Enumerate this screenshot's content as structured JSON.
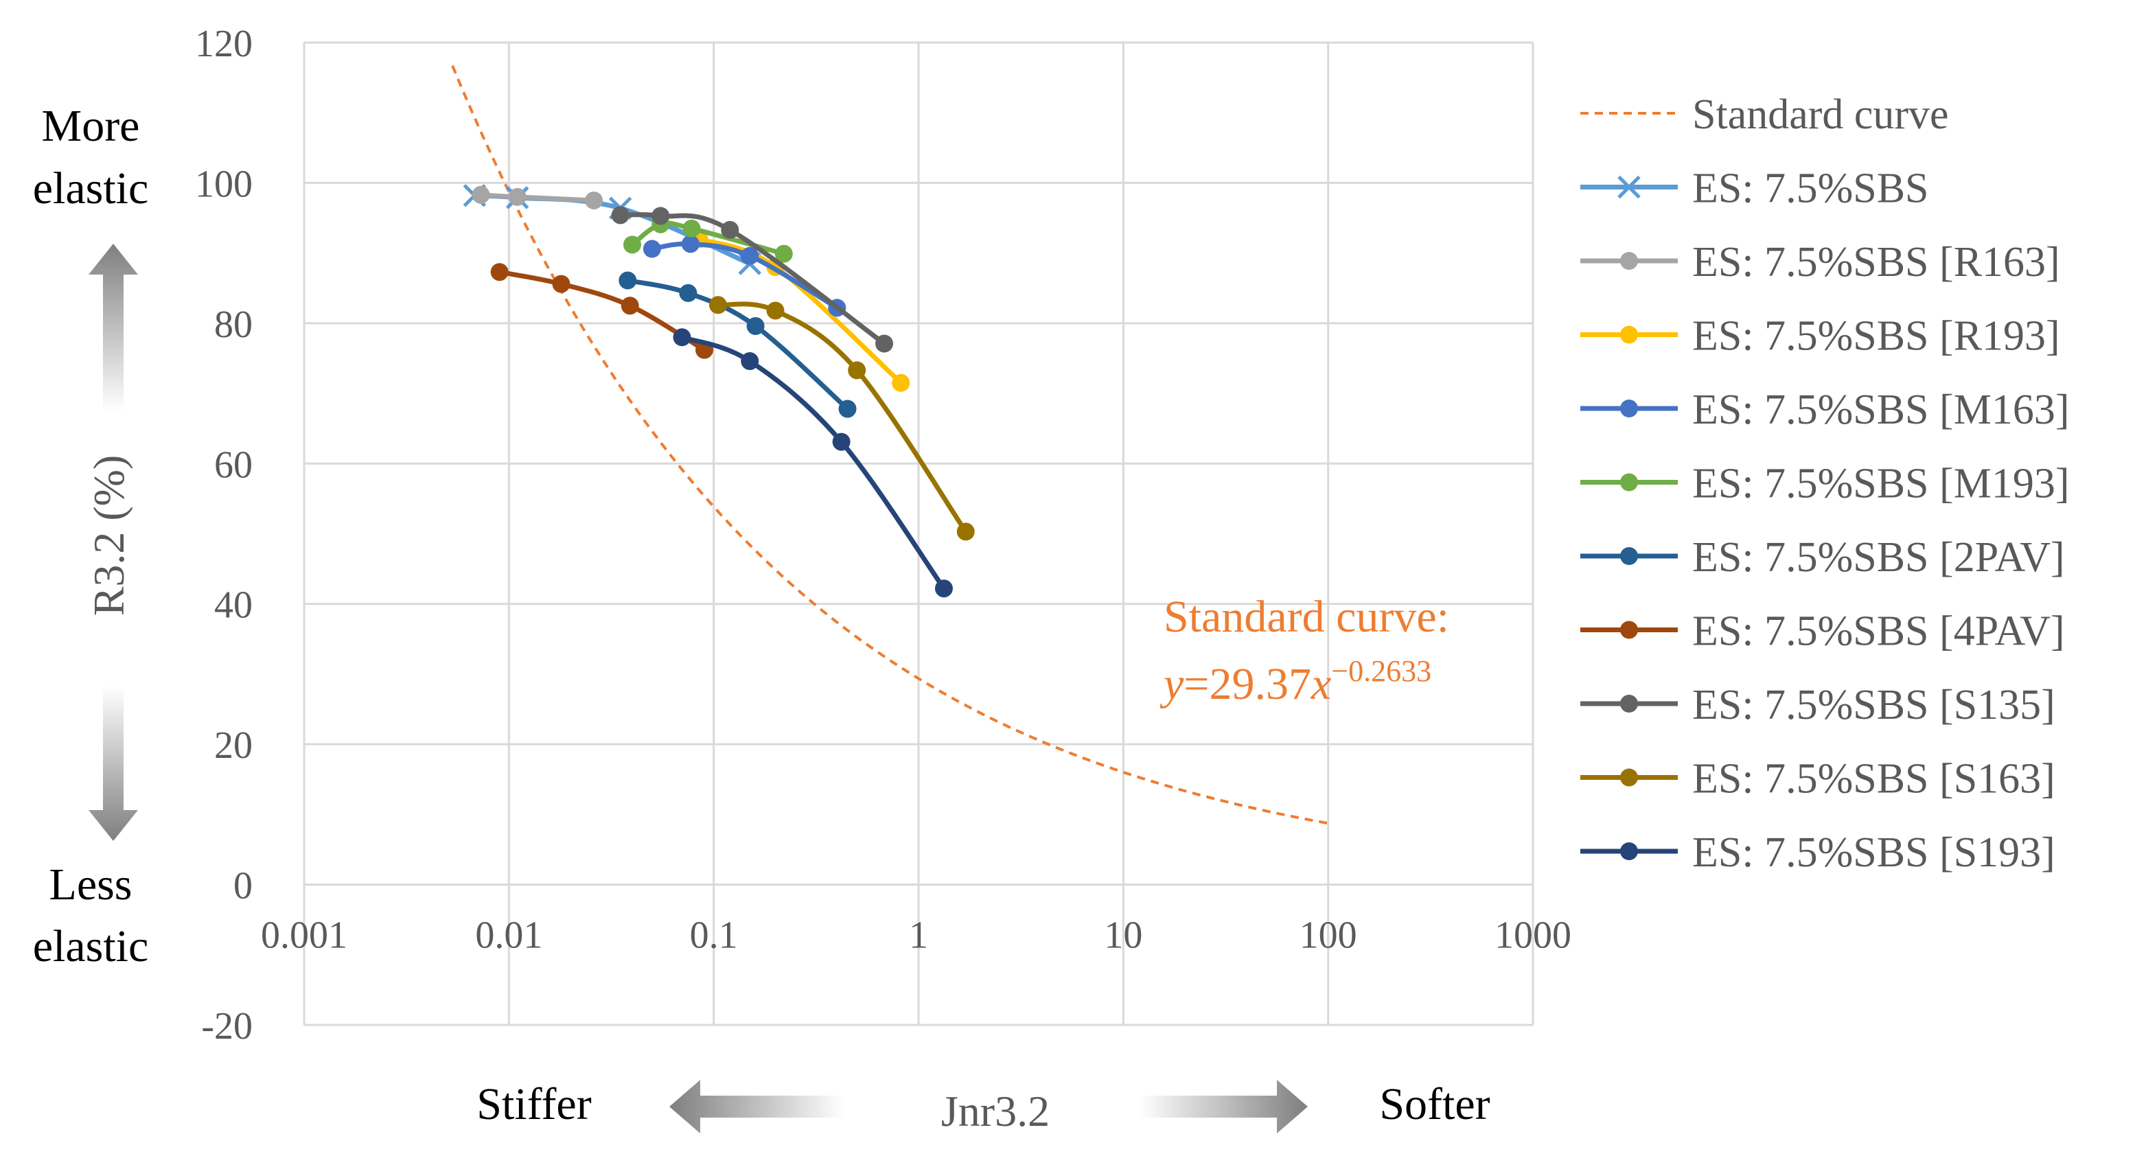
{
  "chart_data": {
    "type": "line",
    "xscale": "log",
    "xlim": [
      0.001,
      1000
    ],
    "ylim": [
      -20,
      120
    ],
    "x_ticks": [
      {
        "value": 0.001,
        "label": "0.001"
      },
      {
        "value": 0.01,
        "label": "0.01"
      },
      {
        "value": 0.1,
        "label": "0.1"
      },
      {
        "value": 1,
        "label": "1"
      },
      {
        "value": 10,
        "label": "10"
      },
      {
        "value": 100,
        "label": "100"
      },
      {
        "value": 1000,
        "label": "1000"
      }
    ],
    "y_ticks": [
      {
        "value": 120,
        "label": "120"
      },
      {
        "value": 100,
        "label": "100"
      },
      {
        "value": 80,
        "label": "80"
      },
      {
        "value": 60,
        "label": "60"
      },
      {
        "value": 40,
        "label": "40"
      },
      {
        "value": 20,
        "label": "20"
      },
      {
        "value": 0,
        "label": "0"
      },
      {
        "value": -20,
        "label": "-20"
      }
    ],
    "grid": true,
    "xlabel": "Jnr3.2",
    "ylabel": "R3.2 (%)",
    "x_left_label": "Stiffer",
    "x_right_label": "Softer",
    "y_top_label": [
      "More",
      "elastic"
    ],
    "y_bottom_label": [
      "Less",
      "elastic"
    ],
    "legend_position": "right",
    "standard_curve": {
      "name": "Standard curve",
      "color": "#ED7D31",
      "coef": 29.37,
      "exponent": -0.2633,
      "x_range": [
        0.0053,
        100
      ],
      "annotation_line1": "Standard curve:",
      "annotation_eq_prefix": "y",
      "annotation_eq_mid": "=29.37",
      "annotation_eq_var": "x",
      "annotation_eq_exp": "−0.2633"
    },
    "series": [
      {
        "name": "ES: 7.5%SBS",
        "color": "#5B9BD5",
        "marker": "x",
        "x": [
          0.0068,
          0.011,
          0.035,
          0.15
        ],
        "y": [
          98.2,
          97.9,
          96.4,
          88.5
        ]
      },
      {
        "name": "ES: 7.5%SBS [R163]",
        "color": "#A5A5A5",
        "marker": "circle",
        "x": [
          0.0073,
          0.011,
          0.026
        ],
        "y": [
          98.3,
          98.0,
          97.5
        ]
      },
      {
        "name": "ES: 7.5%SBS [R193]",
        "color": "#FFC000",
        "marker": "circle",
        "x": [
          0.085,
          0.2,
          0.82
        ],
        "y": [
          92,
          88,
          71.5
        ]
      },
      {
        "name": "ES: 7.5%SBS [M163]",
        "color": "#4472C4",
        "marker": "circle",
        "x": [
          0.05,
          0.077,
          0.15,
          0.4
        ],
        "y": [
          90.6,
          91.3,
          89.6,
          82.2
        ]
      },
      {
        "name": "ES: 7.5%SBS [M193]",
        "color": "#70AD47",
        "marker": "circle",
        "x": [
          0.04,
          0.055,
          0.078,
          0.22
        ],
        "y": [
          91.2,
          94.1,
          93.5,
          89.9
        ]
      },
      {
        "name": "ES: 7.5%SBS [2PAV]",
        "color": "#255E91",
        "marker": "circle",
        "x": [
          0.038,
          0.075,
          0.16,
          0.45
        ],
        "y": [
          86.1,
          84.3,
          79.6,
          67.8
        ]
      },
      {
        "name": "ES: 7.5%SBS [4PAV]",
        "color": "#9E480E",
        "marker": "circle",
        "x": [
          0.009,
          0.018,
          0.039,
          0.09
        ],
        "y": [
          87.3,
          85.6,
          82.5,
          76.2
        ]
      },
      {
        "name": "ES: 7.5%SBS [S135]",
        "color": "#636363",
        "marker": "circle",
        "x": [
          0.035,
          0.055,
          0.12,
          0.68
        ],
        "y": [
          95.4,
          95.3,
          93.3,
          77.1
        ]
      },
      {
        "name": "ES: 7.5%SBS [S163]",
        "color": "#997300",
        "marker": "circle",
        "x": [
          0.105,
          0.2,
          0.5,
          1.7
        ],
        "y": [
          82.6,
          81.8,
          73.3,
          50.3
        ]
      },
      {
        "name": "ES: 7.5%SBS [S193]",
        "color": "#264478",
        "marker": "circle",
        "x": [
          0.07,
          0.15,
          0.42,
          1.33
        ],
        "y": [
          78,
          74.6,
          63.1,
          42.2
        ]
      }
    ]
  }
}
